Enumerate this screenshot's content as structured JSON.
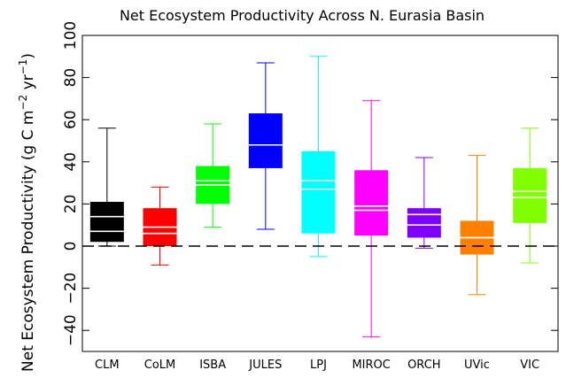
{
  "chart_data": {
    "type": "boxplot",
    "title": "Net Ecosystem Productivity Across N. Eurasia Basin",
    "ylabel_main": "Net Ecosystem Productivity (g C m",
    "ylabel_sup1": "−2",
    "ylabel_mid": " yr",
    "ylabel_sup2": "−1",
    "ylabel_end": ")",
    "ylim": [
      -50,
      100
    ],
    "yticks": [
      -40,
      -20,
      0,
      20,
      40,
      60,
      80,
      100
    ],
    "ytick_labels": [
      "−40",
      "−20",
      "0",
      "20",
      "40",
      "60",
      "80",
      "100"
    ],
    "reference_line": {
      "y": 0,
      "style": "dashed"
    },
    "categories": [
      "CLM",
      "CoLM",
      "ISBA",
      "JULES",
      "LPJ",
      "MIROC",
      "ORCH",
      "UVic",
      "VIC"
    ],
    "boxes": [
      {
        "name": "CLM",
        "color": "#000000",
        "min": 0,
        "q1": 2,
        "median": 7,
        "mean": 14,
        "q3": 21,
        "max": 56
      },
      {
        "name": "CoLM",
        "color": "#ff0000",
        "min": -9,
        "q1": 0,
        "median": 6,
        "mean": 9,
        "q3": 18,
        "max": 28
      },
      {
        "name": "ISBA",
        "color": "#00ff00",
        "min": 9,
        "q1": 20,
        "median": 29,
        "mean": 31,
        "q3": 38,
        "max": 58
      },
      {
        "name": "JULES",
        "color": "#0000ff",
        "min": 8,
        "q1": 37,
        "median": 48,
        "mean": 48,
        "q3": 63,
        "max": 87
      },
      {
        "name": "LPJ",
        "color": "#00ffff",
        "min": -5,
        "q1": 6,
        "median": 27,
        "mean": 31,
        "q3": 45,
        "max": 90
      },
      {
        "name": "MIROC",
        "color": "#ff00ff",
        "min": -43,
        "q1": 5,
        "median": 17,
        "mean": 19,
        "q3": 36,
        "max": 69
      },
      {
        "name": "ORCH",
        "color": "#8000ff",
        "min": -1,
        "q1": 4,
        "median": 10,
        "mean": 15,
        "q3": 18,
        "max": 42
      },
      {
        "name": "UVic",
        "color": "#ff8000",
        "min": -23,
        "q1": -4,
        "median": 4,
        "mean": 4,
        "q3": 12,
        "max": 43
      },
      {
        "name": "VIC",
        "color": "#80ff00",
        "min": -8,
        "q1": 11,
        "median": 23,
        "mean": 26,
        "q3": 37,
        "max": 56
      }
    ]
  }
}
